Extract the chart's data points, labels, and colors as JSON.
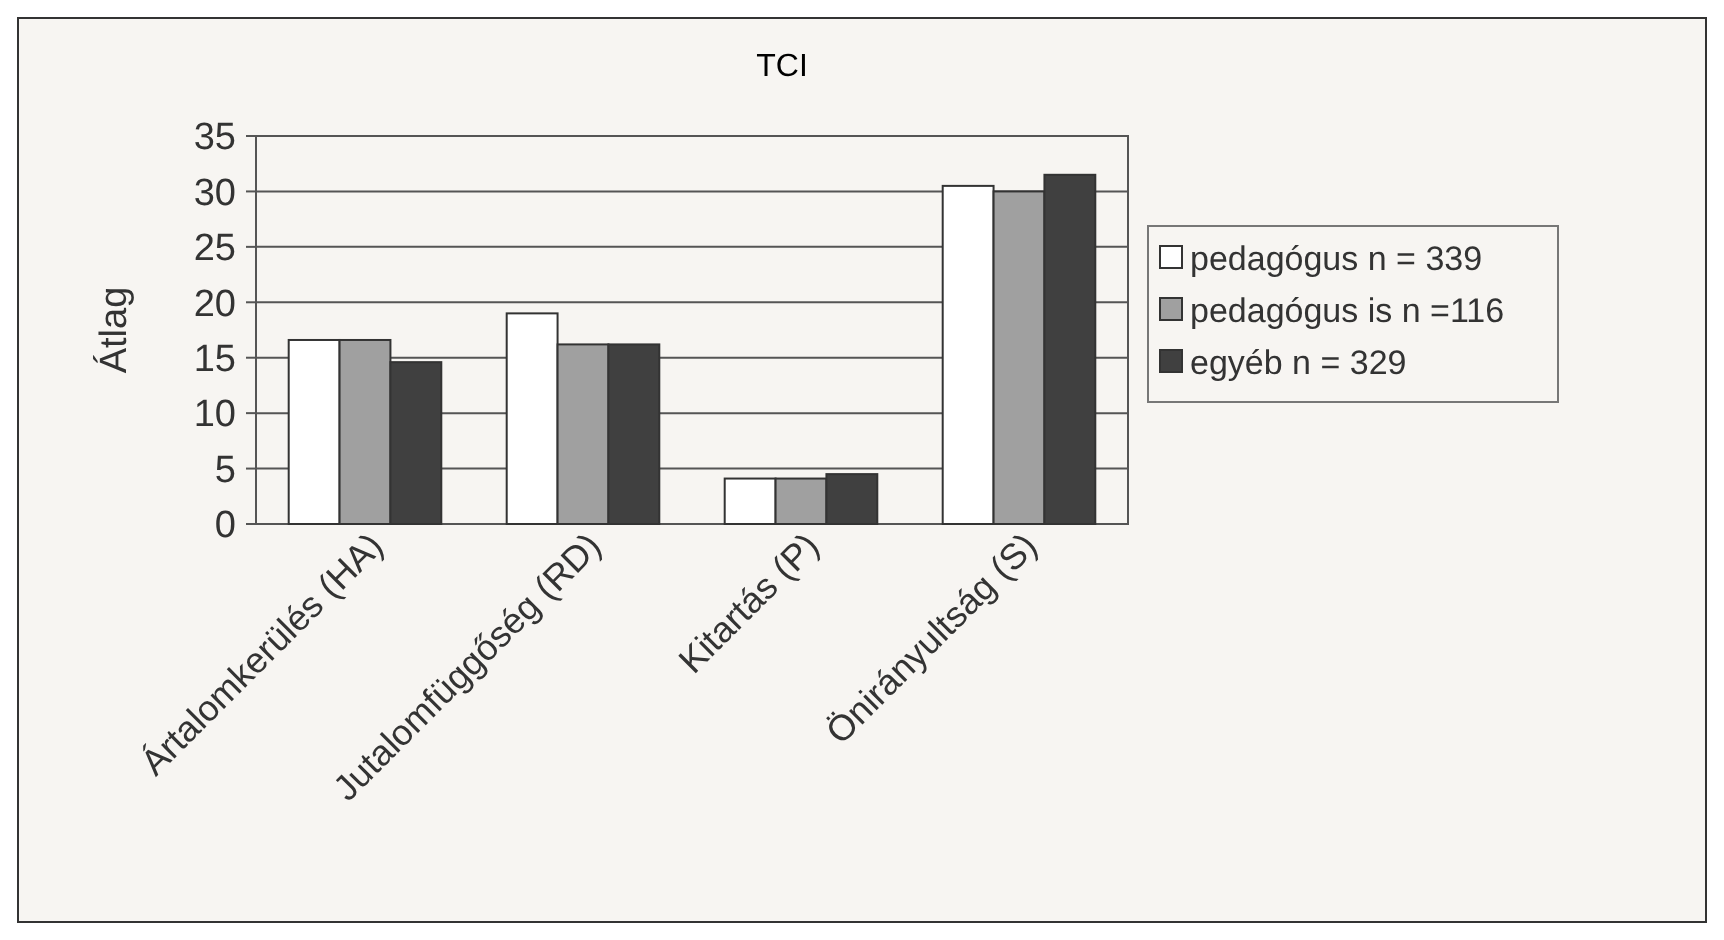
{
  "chart_data": {
    "type": "bar",
    "title": "TCI",
    "ylabel": "Átlag",
    "categories": [
      "Ártalomkerülés (HA)",
      "Jutalomfüggőség (RD)",
      "Kitartás (P)",
      "Önirányultság (S)"
    ],
    "series": [
      {
        "name": "pedagógus n = 339",
        "color": "#ffffff",
        "values": [
          16.6,
          19,
          4.1,
          30.5
        ]
      },
      {
        "name": "pedagógus is n =116",
        "color": "#a0a0a0",
        "values": [
          16.6,
          16.2,
          4.1,
          30
        ]
      },
      {
        "name": "egyéb n = 329",
        "color": "#404040",
        "values": [
          14.6,
          16.2,
          4.5,
          31.5
        ]
      }
    ],
    "ylim": [
      0,
      35
    ],
    "yticks": [
      0,
      5,
      10,
      15,
      20,
      25,
      30,
      35
    ],
    "grid": "y",
    "legend": "right"
  }
}
